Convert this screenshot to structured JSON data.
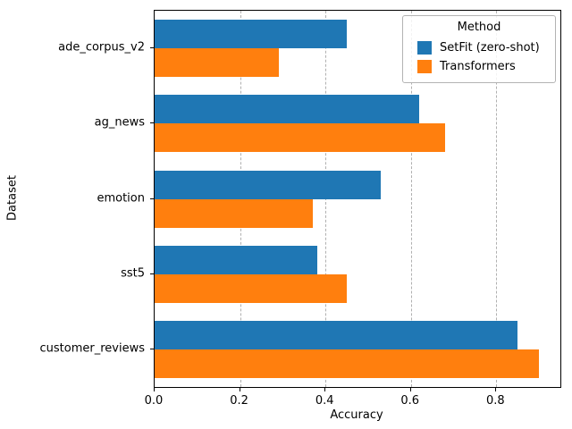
{
  "chart_data": {
    "type": "bar",
    "orientation": "horizontal",
    "title": "",
    "xlabel": "Accuracy",
    "ylabel": "Dataset",
    "legend_title": "Method",
    "legend_position": "upper right",
    "grid": "vertical dashed gridlines at x ticks",
    "xlim": [
      0,
      0.95
    ],
    "xticks": [
      0.0,
      0.2,
      0.4,
      0.6,
      0.8
    ],
    "categories": [
      "ade_corpus_v2",
      "ag_news",
      "emotion",
      "sst5",
      "customer_reviews"
    ],
    "series": [
      {
        "name": "SetFit (zero-shot)",
        "color": "#1f77b4",
        "values": [
          0.45,
          0.62,
          0.53,
          0.38,
          0.85
        ]
      },
      {
        "name": "Transformers",
        "color": "#ff7f0e",
        "values": [
          0.29,
          0.68,
          0.37,
          0.45,
          0.9
        ]
      }
    ]
  }
}
